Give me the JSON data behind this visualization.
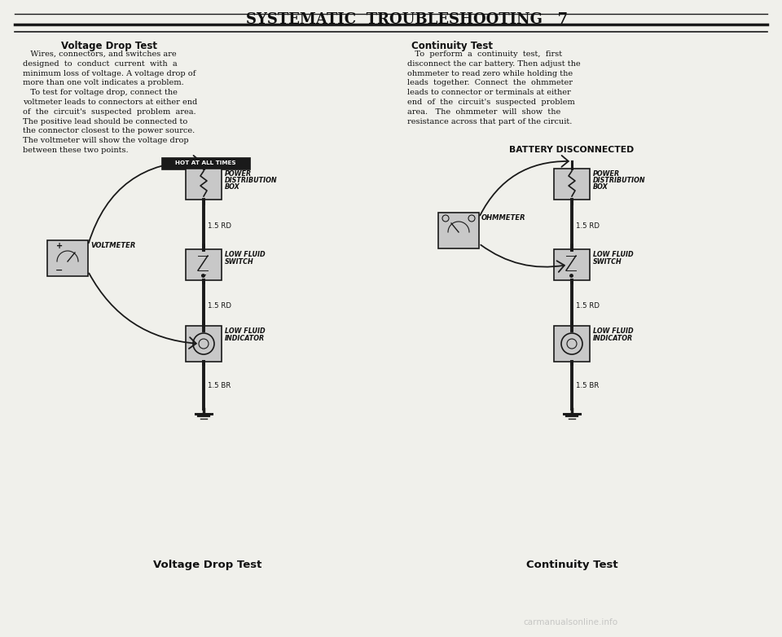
{
  "bg_color": "#f0f0eb",
  "page_title": "SYSTEMATIC  TROUBLESHOOTING   7",
  "section1_heading": "Voltage Drop Test",
  "section1_text": [
    "   Wires, connectors, and switches are",
    "designed  to  conduct  current  with  a",
    "minimum loss of voltage. A voltage drop of",
    "more than one volt indicates a problem.",
    "   To test for voltage drop, connect the",
    "voltmeter leads to connectors at either end",
    "of  the  circuit's  suspected  problem  area.",
    "The positive lead should be connected to",
    "the connector closest to the power source.",
    "The voltmeter will show the voltage drop",
    "between these two points."
  ],
  "section2_heading": "Continuity Test",
  "section2_text": [
    "   To  perform  a  continuity  test,  first",
    "disconnect the car battery. Then adjust the",
    "ohmmeter to read zero while holding the",
    "leads  together.  Connect  the  ohmmeter",
    "leads to connector or terminals at either",
    "end  of  the  circuit's  suspected  problem",
    "area.   The  ohmmeter  will  show  the",
    "resistance across that part of the circuit."
  ],
  "diagram1_label": "HOT AT ALL TIMES",
  "diagram1_caption": "Voltage Drop Test",
  "diagram2_label": "BATTERY DISCONNECTED",
  "diagram2_caption": "Continuity Test",
  "wire_label_rd": "1.5 RD",
  "wire_label_br": "1.5 BR",
  "power_box_lines": [
    "POWER",
    "DISTRIBUTION",
    "BOX"
  ],
  "low_fluid_switch_lines": [
    "LOW FLUID",
    "SWITCH"
  ],
  "low_fluid_indicator_lines": [
    "LOW FLUID",
    "INDICATOR"
  ],
  "voltmeter_label": "VOLTMETER",
  "ohmmeter_label": "OHMMETER",
  "footer_text": "carmanualsonline.info",
  "line_color": "#1a1a1a",
  "box_fill": "#c8c8c8",
  "text_color": "#111111"
}
